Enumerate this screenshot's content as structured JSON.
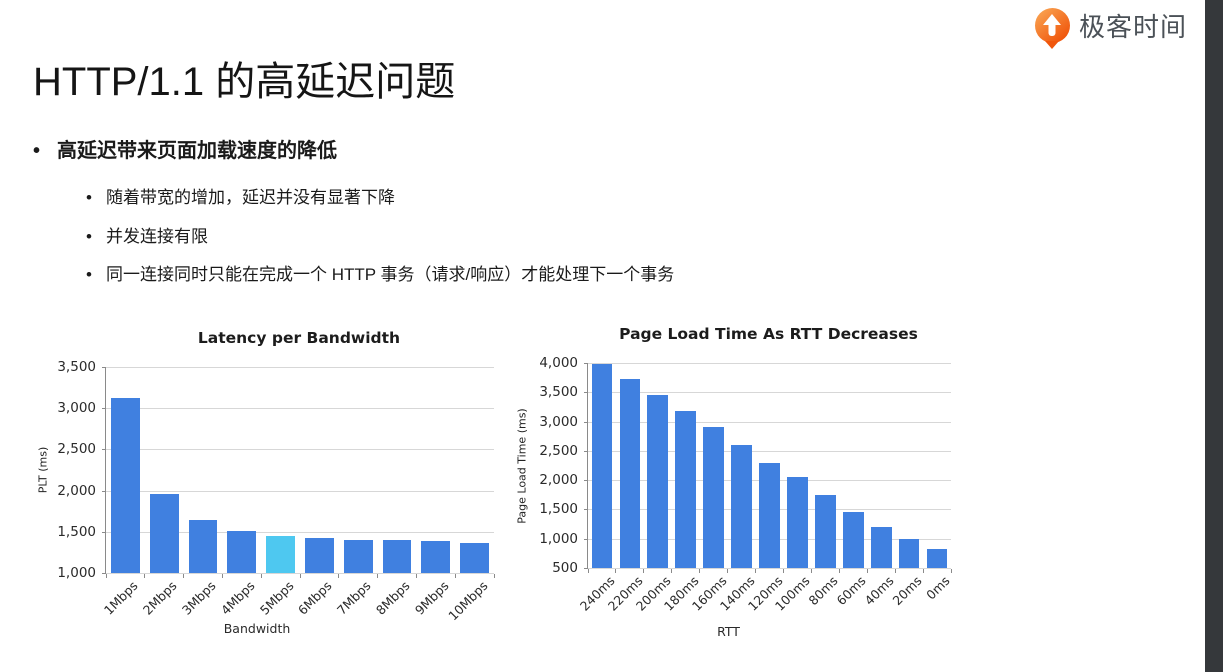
{
  "logo": {
    "text": "极客时间"
  },
  "slide": {
    "title": "HTTP/1.1 的高延迟问题",
    "bullet_marker": "•",
    "bullet": "高延迟带来页面加载速度的降低",
    "sub_bullets": [
      "随着带宽的增加，延迟并没有显著下降",
      "并发连接有限",
      "同一连接同时只能在完成一个 HTTP 事务（请求/响应）才能处理下一个事务"
    ]
  },
  "colors": {
    "side_strip": "#35383B",
    "logo_orange_dark": "#F0560C",
    "logo_orange_light": "#F9A14F",
    "logo_text": "#4B5157",
    "bar_blue": "#4080E0",
    "bar_cyan": "#4EC8F0"
  },
  "chart_data": [
    {
      "type": "bar",
      "title": "Latency per Bandwidth",
      "xlabel": "Bandwidth",
      "ylabel": "PLT (ms)",
      "categories": [
        "1Mbps",
        "2Mbps",
        "3Mbps",
        "4Mbps",
        "5Mbps",
        "6Mbps",
        "7Mbps",
        "8Mbps",
        "9Mbps",
        "10Mbps"
      ],
      "values": [
        3130,
        1955,
        1640,
        1510,
        1455,
        1430,
        1400,
        1400,
        1385,
        1365
      ],
      "ylim": [
        1000,
        3500
      ],
      "ytick_values": [
        1000,
        1500,
        2000,
        2500,
        3000,
        3500
      ],
      "ytick_labels": [
        "1,000",
        "1,500",
        "2,000",
        "2,500",
        "3,000",
        "3,500"
      ],
      "grid": true,
      "legend": "none",
      "bar_color": "#4080E0",
      "highlight_index": 4,
      "highlight_color": "#4EC8F0"
    },
    {
      "type": "bar",
      "title": "Page Load Time As RTT Decreases",
      "xlabel": "RTT",
      "ylabel": "Page Load Time (ms)",
      "categories": [
        "240ms",
        "220ms",
        "200ms",
        "180ms",
        "160ms",
        "140ms",
        "120ms",
        "100ms",
        "80ms",
        "60ms",
        "40ms",
        "20ms",
        "0ms"
      ],
      "values": [
        3980,
        3730,
        3450,
        3180,
        2900,
        2600,
        2300,
        2060,
        1740,
        1450,
        1200,
        990,
        820
      ],
      "ylim": [
        500,
        4000
      ],
      "ytick_values": [
        500,
        1000,
        1500,
        2000,
        2500,
        3000,
        3500,
        4000
      ],
      "ytick_labels": [
        "500",
        "1,000",
        "1,500",
        "2,000",
        "2,500",
        "3,000",
        "3,500",
        "4,000"
      ],
      "grid": true,
      "legend": "none",
      "bar_color": "#4080E0"
    }
  ]
}
